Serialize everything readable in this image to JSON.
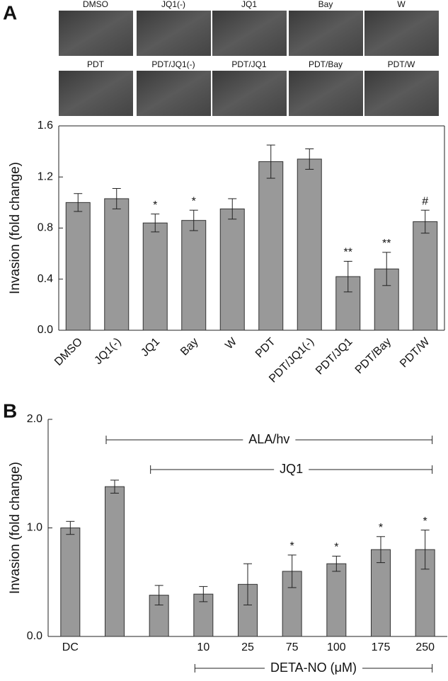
{
  "images": {
    "labels": [
      "DMSO",
      "JQ1(-)",
      "JQ1",
      "Bay",
      "W",
      "PDT",
      "PDT/JQ1(-)",
      "PDT/JQ1",
      "PDT/Bay",
      "PDT/W"
    ]
  },
  "chart_data": [
    {
      "type": "bar",
      "panel": "A",
      "ylabel": "Invasion (fold change)",
      "categories": [
        "DMSO",
        "JQ1(-)",
        "JQ1",
        "Bay",
        "W",
        "PDT",
        "PDT/JQ1(-)",
        "PDT/JQ1",
        "PDT/Bay",
        "PDT/W"
      ],
      "values": [
        1.0,
        1.03,
        0.84,
        0.86,
        0.95,
        1.32,
        1.34,
        0.42,
        0.48,
        0.85
      ],
      "errors": [
        0.07,
        0.08,
        0.07,
        0.08,
        0.08,
        0.13,
        0.08,
        0.12,
        0.13,
        0.09
      ],
      "markers": [
        null,
        null,
        "*",
        "*",
        null,
        null,
        null,
        "**",
        "**",
        "#"
      ],
      "color": "#999999",
      "ylim": [
        0,
        1.6
      ],
      "yticks": [
        {
          "value": 0,
          "label": "0.0"
        },
        0.4,
        0.8,
        1.2,
        1.6
      ]
    },
    {
      "type": "bar",
      "panel": "B",
      "ylabel": "Invasion (fold change)",
      "categories": [
        "DC",
        null,
        null,
        "10",
        "25",
        "75",
        "100",
        "175",
        "250"
      ],
      "values": [
        1.0,
        1.38,
        0.38,
        0.39,
        0.48,
        0.6,
        0.67,
        0.8,
        0.8
      ],
      "errors": [
        0.06,
        0.06,
        0.09,
        0.07,
        0.19,
        0.15,
        0.07,
        0.12,
        0.18
      ],
      "markers": [
        null,
        null,
        null,
        null,
        null,
        "*",
        "*",
        "*",
        "*"
      ],
      "brackets": [
        {
          "label": "ALA/hv"
        },
        {
          "label": "JQ1"
        }
      ],
      "xlabel": "DETA-NO (μM)",
      "color": "#999999",
      "ylim": [
        0,
        2.0
      ],
      "yticks": [
        {
          "value": 0,
          "label": "0.0"
        },
        {
          "value": 1,
          "label": "1.0"
        },
        {
          "value": 2,
          "label": "2.0"
        }
      ]
    }
  ]
}
